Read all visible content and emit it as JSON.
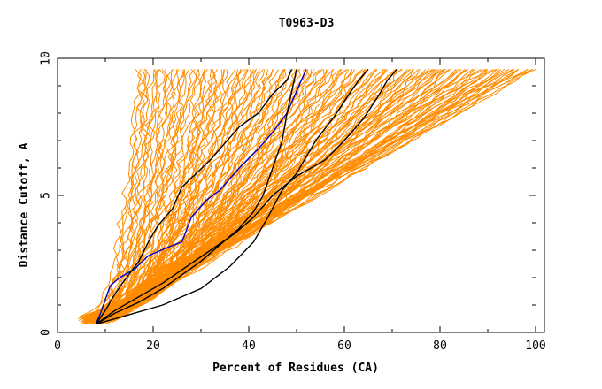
{
  "chart_data": {
    "type": "line",
    "title": "T0963-D3",
    "xlabel": "Percent of Residues (CA)",
    "ylabel": "Distance Cutoff, A",
    "xlim": [
      0,
      100
    ],
    "ylim": [
      0,
      10
    ],
    "x_ticks": [
      0,
      20,
      40,
      60,
      80,
      100
    ],
    "x_tick_labels": [
      "0",
      "20",
      "40",
      "60",
      "80",
      "100"
    ],
    "y_ticks": [
      0,
      5,
      10
    ],
    "y_tick_labels": [
      "0",
      "5",
      "10"
    ],
    "grid": false,
    "legend": "none",
    "colors": {
      "background_models": "#ff8c00",
      "highlight_blue": "#0000cc",
      "highlight_black": "#000000"
    },
    "background_model_count": 150,
    "series": [
      {
        "color": "#0000cc",
        "points": [
          [
            8,
            0.3
          ],
          [
            9,
            0.7
          ],
          [
            10,
            1.2
          ],
          [
            11,
            1.7
          ],
          [
            13,
            2.0
          ],
          [
            16,
            2.3
          ],
          [
            19,
            2.8
          ],
          [
            23,
            3.1
          ],
          [
            26,
            3.3
          ],
          [
            28,
            4.2
          ],
          [
            31,
            4.8
          ],
          [
            34,
            5.2
          ],
          [
            38,
            6.0
          ],
          [
            42,
            6.7
          ],
          [
            45,
            7.3
          ],
          [
            48,
            8.0
          ],
          [
            50,
            8.8
          ],
          [
            52,
            9.6
          ]
        ]
      },
      {
        "color": "#000000",
        "points": [
          [
            8,
            0.3
          ],
          [
            10,
            0.8
          ],
          [
            12,
            1.4
          ],
          [
            14,
            1.9
          ],
          [
            17,
            2.6
          ],
          [
            19,
            3.3
          ],
          [
            21,
            3.9
          ],
          [
            24,
            4.5
          ],
          [
            26,
            5.3
          ],
          [
            29,
            5.8
          ],
          [
            32,
            6.3
          ],
          [
            35,
            6.9
          ],
          [
            38,
            7.5
          ],
          [
            42,
            8.0
          ],
          [
            45,
            8.7
          ],
          [
            48,
            9.2
          ],
          [
            49,
            9.6
          ]
        ]
      },
      {
        "color": "#000000",
        "points": [
          [
            8,
            0.3
          ],
          [
            12,
            0.7
          ],
          [
            17,
            1.1
          ],
          [
            22,
            1.6
          ],
          [
            26,
            2.1
          ],
          [
            30,
            2.6
          ],
          [
            34,
            3.2
          ],
          [
            38,
            3.8
          ],
          [
            41,
            4.4
          ],
          [
            43,
            5.0
          ],
          [
            45,
            6.0
          ],
          [
            47,
            7.0
          ],
          [
            48,
            8.0
          ],
          [
            49,
            8.8
          ],
          [
            50,
            9.6
          ]
        ]
      },
      {
        "color": "#000000",
        "points": [
          [
            8,
            0.3
          ],
          [
            12,
            0.8
          ],
          [
            17,
            1.3
          ],
          [
            22,
            1.8
          ],
          [
            27,
            2.4
          ],
          [
            32,
            3.0
          ],
          [
            37,
            3.6
          ],
          [
            41,
            4.2
          ],
          [
            45,
            5.0
          ],
          [
            50,
            5.7
          ],
          [
            56,
            6.3
          ],
          [
            60,
            7.0
          ],
          [
            64,
            7.8
          ],
          [
            67,
            8.6
          ],
          [
            69,
            9.2
          ],
          [
            71,
            9.6
          ]
        ]
      },
      {
        "color": "#000000",
        "points": [
          [
            8,
            0.3
          ],
          [
            14,
            0.6
          ],
          [
            22,
            1.0
          ],
          [
            30,
            1.6
          ],
          [
            36,
            2.4
          ],
          [
            41,
            3.3
          ],
          [
            44,
            4.2
          ],
          [
            47,
            5.2
          ],
          [
            50,
            5.8
          ],
          [
            54,
            7.0
          ],
          [
            58,
            7.9
          ],
          [
            61,
            8.7
          ],
          [
            63,
            9.2
          ],
          [
            65,
            9.6
          ]
        ]
      }
    ]
  }
}
